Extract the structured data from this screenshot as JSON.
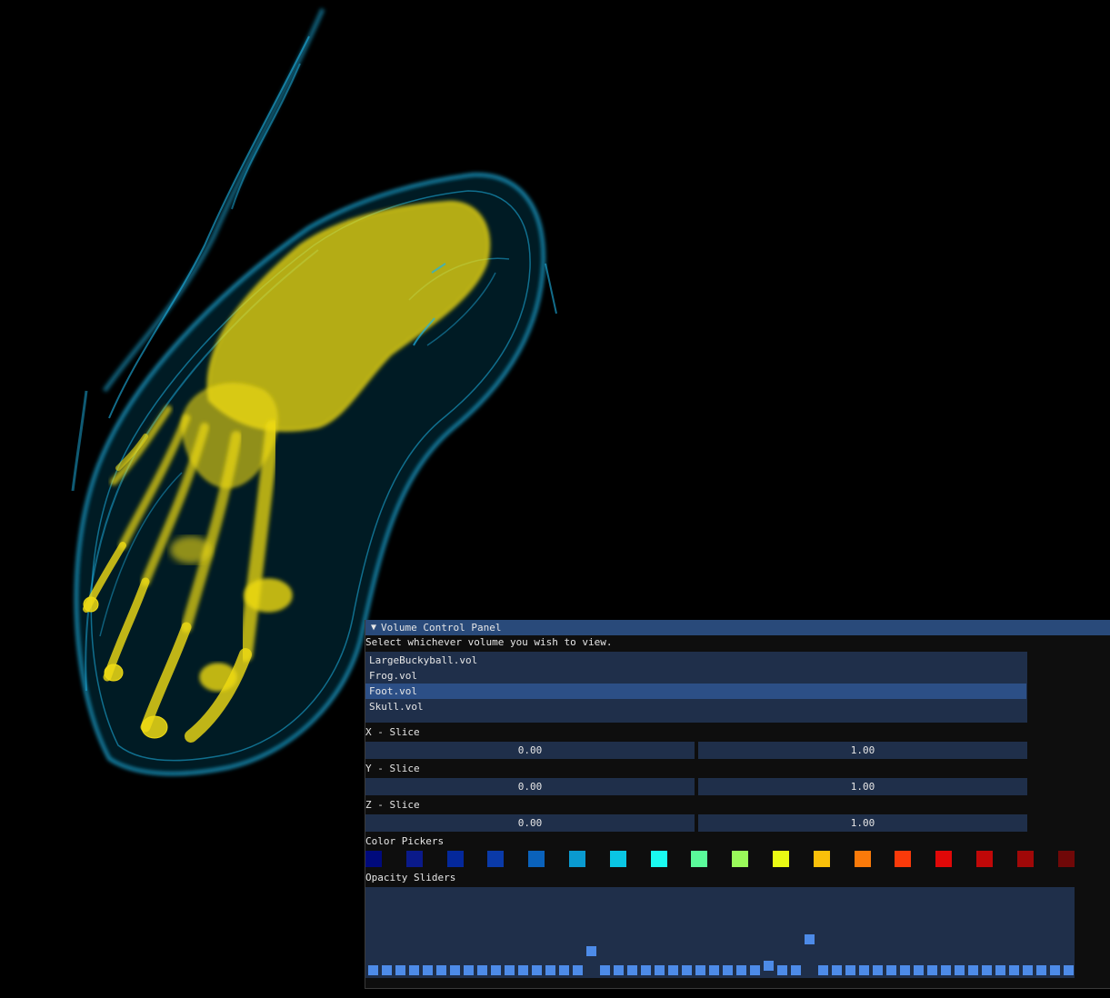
{
  "panel": {
    "title": "Volume Control Panel",
    "instruction": "Select whichever volume you wish to view.",
    "volumes": [
      {
        "label": "LargeBuckyball.vol",
        "selected": false
      },
      {
        "label": "Frog.vol",
        "selected": false
      },
      {
        "label": "Foot.vol",
        "selected": true
      },
      {
        "label": "Skull.vol",
        "selected": false
      }
    ],
    "x_slice": {
      "label": "X - Slice",
      "min": "0.00",
      "max": "1.00"
    },
    "y_slice": {
      "label": "Y - Slice",
      "min": "0.00",
      "max": "1.00"
    },
    "z_slice": {
      "label": "Z - Slice",
      "min": "0.00",
      "max": "1.00"
    },
    "color_pickers": {
      "label": "Color Pickers",
      "colors": [
        "#000a7c",
        "#0a1a8a",
        "#04289b",
        "#0a3aa8",
        "#0a62bb",
        "#0a9ad0",
        "#0ac6e4",
        "#1afaf0",
        "#5afa9a",
        "#9afa5a",
        "#eafa14",
        "#fac00a",
        "#fa7a0a",
        "#fa3a0a",
        "#e00808",
        "#c00808",
        "#a00808",
        "#700808"
      ]
    },
    "opacity_sliders": {
      "label": "Opacity Sliders",
      "levels": [
        0,
        0,
        0,
        0,
        0,
        0,
        0,
        0,
        0,
        0,
        0,
        0,
        0,
        0,
        0,
        0,
        0.26,
        0,
        0,
        0,
        0,
        0,
        0,
        0,
        0,
        0,
        0,
        0,
        0,
        0.06,
        0,
        0,
        0.42,
        0,
        0,
        0,
        0,
        0,
        0,
        0,
        0,
        0,
        0,
        0,
        0,
        0,
        0,
        0,
        0,
        0,
        0,
        0
      ]
    }
  },
  "colors": {
    "skin": "#1eb4e6",
    "bone": "#f0dc14",
    "handle": "#4d8be8",
    "header": "#294a7a",
    "frame": "#1f2f4a",
    "selected": "#2c4f86"
  }
}
